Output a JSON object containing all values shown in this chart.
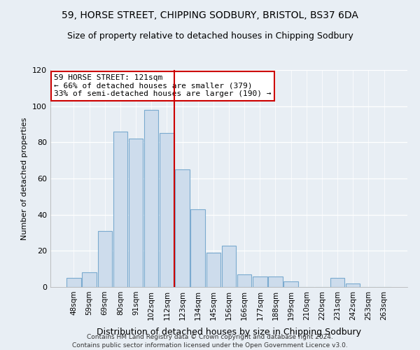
{
  "title": "59, HORSE STREET, CHIPPING SODBURY, BRISTOL, BS37 6DA",
  "subtitle": "Size of property relative to detached houses in Chipping Sodbury",
  "xlabel": "Distribution of detached houses by size in Chipping Sodbury",
  "ylabel": "Number of detached properties",
  "bar_labels": [
    "48sqm",
    "59sqm",
    "69sqm",
    "80sqm",
    "91sqm",
    "102sqm",
    "112sqm",
    "123sqm",
    "134sqm",
    "145sqm",
    "156sqm",
    "166sqm",
    "177sqm",
    "188sqm",
    "199sqm",
    "210sqm",
    "220sqm",
    "231sqm",
    "242sqm",
    "253sqm",
    "263sqm"
  ],
  "bar_values": [
    5,
    8,
    31,
    86,
    82,
    98,
    85,
    65,
    43,
    19,
    23,
    7,
    6,
    6,
    3,
    0,
    0,
    5,
    2,
    0,
    0
  ],
  "bar_color": "#cddcec",
  "bar_edge_color": "#7aaacf",
  "vline_color": "#cc0000",
  "annotation_title": "59 HORSE STREET: 121sqm",
  "annotation_line1": "← 66% of detached houses are smaller (379)",
  "annotation_line2": "33% of semi-detached houses are larger (190) →",
  "annotation_box_color": "white",
  "annotation_box_edge": "#cc0000",
  "ylim": [
    0,
    120
  ],
  "yticks": [
    0,
    20,
    40,
    60,
    80,
    100,
    120
  ],
  "footer1": "Contains HM Land Registry data © Crown copyright and database right 2024.",
  "footer2": "Contains public sector information licensed under the Open Government Licence v3.0.",
  "bg_color": "#e8eef4",
  "plot_bg_color": "#e8eef4",
  "grid_color": "#ffffff",
  "title_fontsize": 10,
  "subtitle_fontsize": 9
}
